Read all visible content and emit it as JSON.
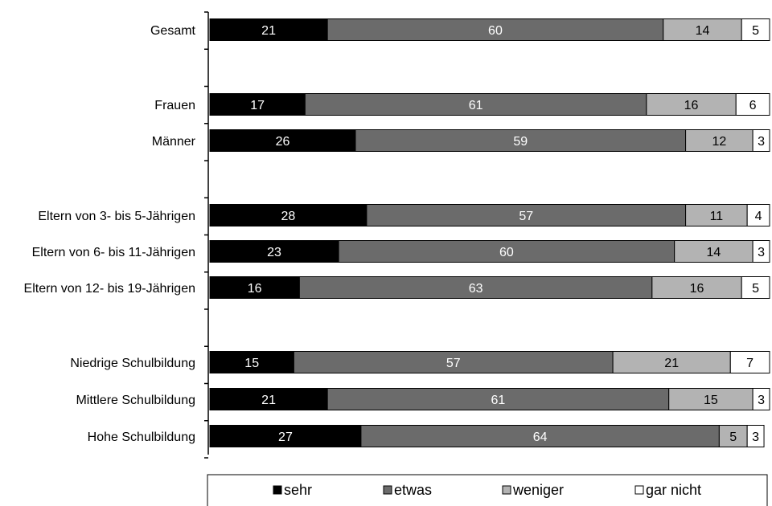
{
  "chart_data": {
    "type": "bar",
    "orientation": "horizontal",
    "stacked": true,
    "percent_stacked": true,
    "categories": [
      "Gesamt",
      "Frauen",
      "Männer",
      "Eltern von 3- bis 5-Jährigen",
      "Eltern von 6- bis 11-Jährigen",
      "Eltern von 12- bis 19-Jährigen",
      "Niedrige Schulbildung",
      "Mittlere Schulbildung",
      "Hohe Schulbildung"
    ],
    "series": [
      {
        "name": "sehr",
        "color": "#000000",
        "label_color": "#ffffff",
        "values": [
          21,
          17,
          26,
          28,
          23,
          16,
          15,
          21,
          27
        ]
      },
      {
        "name": "etwas",
        "color": "#6b6b6b",
        "label_color": "#ffffff",
        "values": [
          60,
          61,
          59,
          57,
          60,
          63,
          57,
          61,
          64
        ]
      },
      {
        "name": "weniger",
        "color": "#b3b3b3",
        "label_color": "#000000",
        "values": [
          14,
          16,
          12,
          11,
          14,
          16,
          21,
          15,
          5
        ]
      },
      {
        "name": "gar nicht",
        "color": "#ffffff",
        "label_color": "#000000",
        "values": [
          5,
          6,
          3,
          4,
          3,
          5,
          7,
          3,
          3
        ]
      }
    ],
    "title": "",
    "xlabel": "",
    "ylabel": "",
    "xlim": [
      0,
      100
    ],
    "grid": false,
    "legend_position": "bottom"
  }
}
